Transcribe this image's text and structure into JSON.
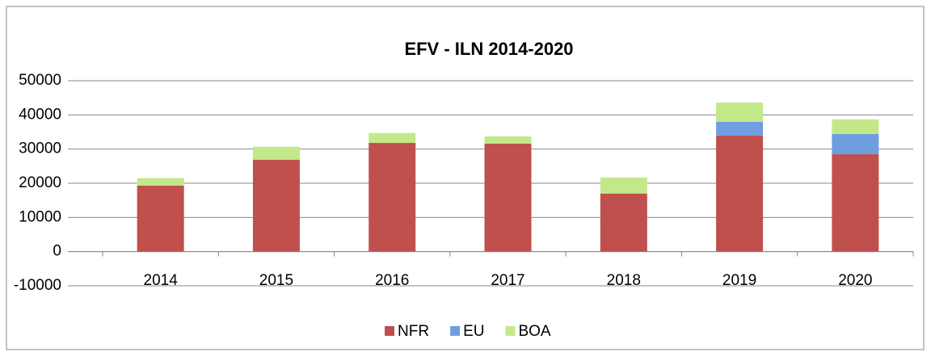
{
  "chart_data": {
    "type": "stacked_bar",
    "title": "EFV - ILN 2014-2020",
    "categories": [
      "2014",
      "2015",
      "2016",
      "2017",
      "2018",
      "2019",
      "2020"
    ],
    "series": [
      {
        "name": "NFR",
        "color": "#c0504d",
        "values": [
          19300,
          26900,
          31800,
          31600,
          17000,
          34000,
          28500
        ]
      },
      {
        "name": "EU",
        "color": "#6f9ee0",
        "values": [
          0,
          0,
          0,
          0,
          0,
          4000,
          5900
        ]
      },
      {
        "name": "BOA",
        "color": "#c3e88a",
        "values": [
          2200,
          3800,
          2900,
          2100,
          4700,
          5600,
          4300
        ]
      }
    ],
    "ylim": [
      -10000,
      50000
    ],
    "yticks": [
      -10000,
      0,
      10000,
      20000,
      30000,
      40000,
      50000
    ],
    "grid": true,
    "legend": "bottom"
  }
}
